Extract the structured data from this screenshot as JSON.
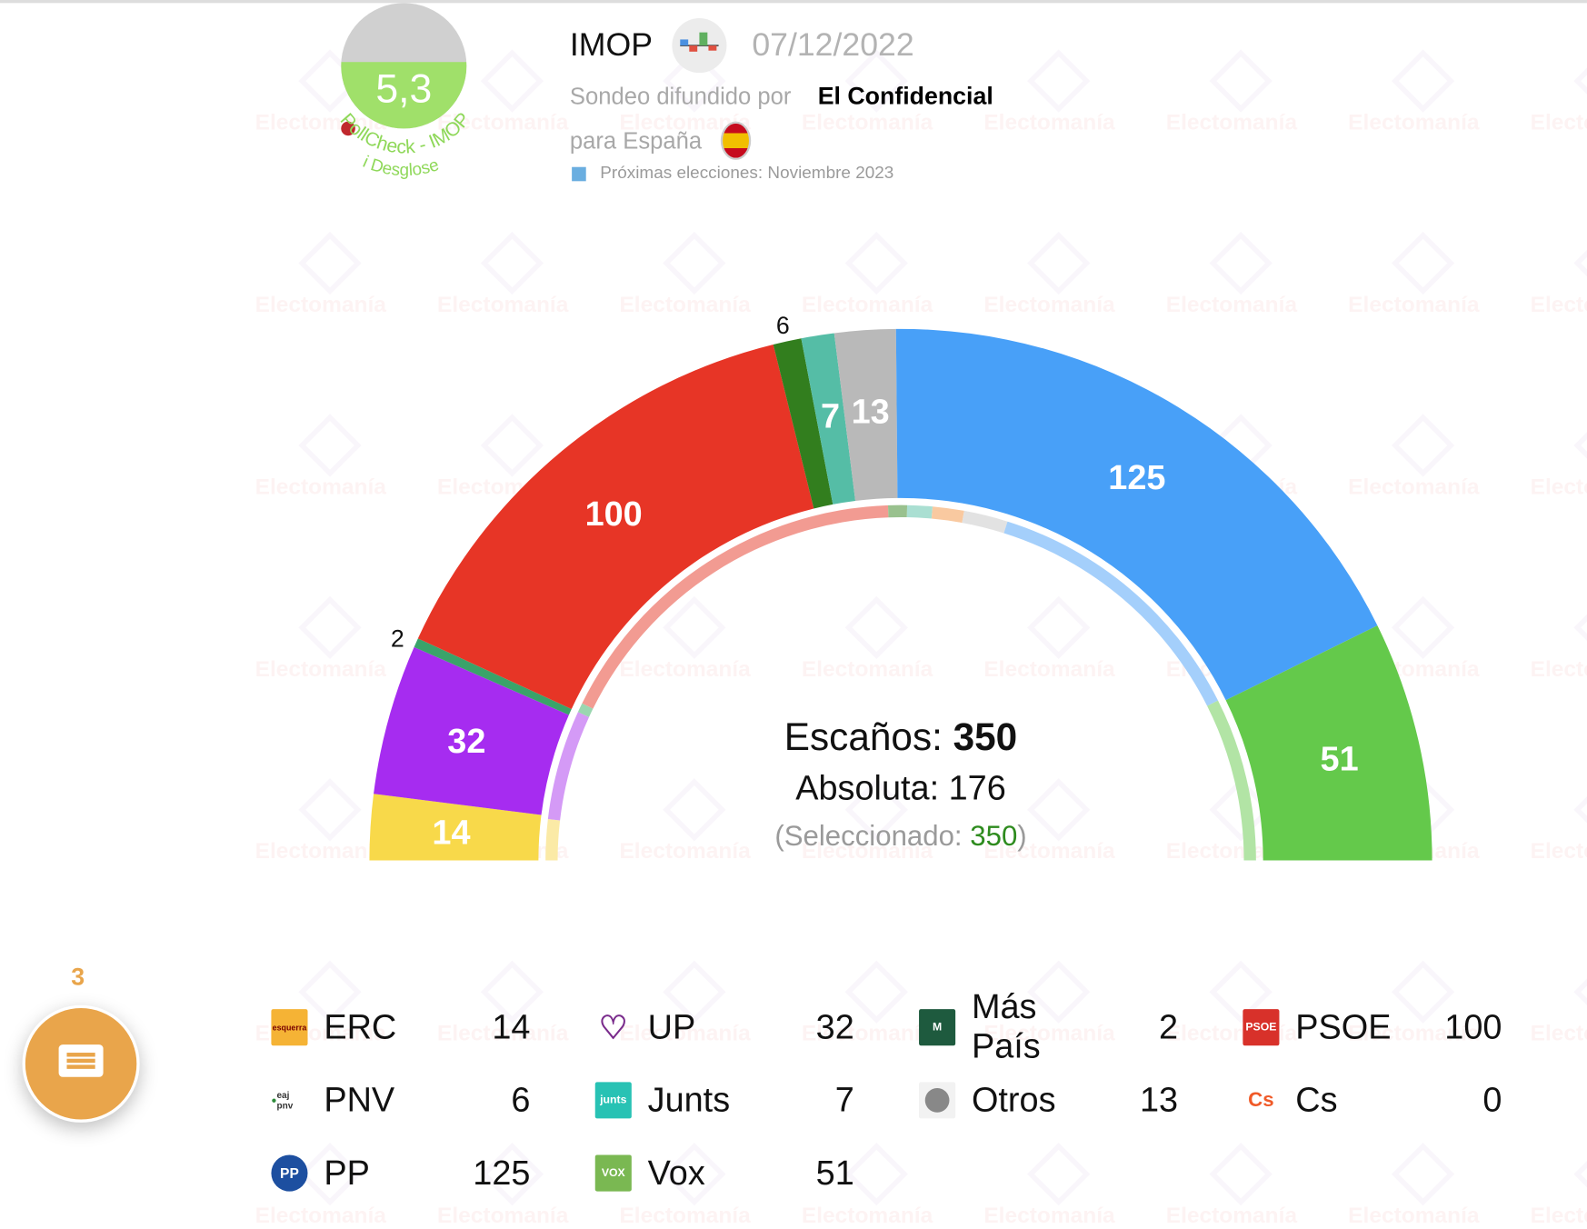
{
  "header": {
    "pollster": "IMOP",
    "date": "07/12/2022",
    "published_by_label": "Sondeo difundido por",
    "media": "El Confidencial",
    "scope": "para España",
    "next_elections": "Próximas elecciones: Noviembre 2023",
    "rating": {
      "value": "5,3",
      "fill_fraction": 0.53,
      "label": "PollCheck - IMOP",
      "link": "i Desglose",
      "color": "#a0e06a"
    }
  },
  "watermark": "Electomanía",
  "center": {
    "seats_label": "Escaños:",
    "seats_total": "350",
    "majority_label": "Absoluta: 176",
    "selected_label": "(Seleccionado:",
    "selected_value": "350",
    "selected_close": ")"
  },
  "chart_data": {
    "type": "pie",
    "shape": "semicircle-parliament",
    "total": 350,
    "series": [
      {
        "name": "ERC",
        "value": 14,
        "color": "#f8d94a",
        "previous": 13,
        "previous_color": "#fbeaa6"
      },
      {
        "name": "UP",
        "value": 32,
        "color": "#a62cf0",
        "previous": 35,
        "previous_color": "#d49af6"
      },
      {
        "name": "Más País",
        "value": 2,
        "color": "#3aa36a",
        "previous": 3,
        "previous_color": "#9ad6b0"
      },
      {
        "name": "PSOE",
        "value": 100,
        "color": "#e73526",
        "previous": 120,
        "previous_color": "#f29b92"
      },
      {
        "name": "PNV",
        "value": 6,
        "color": "#327e1e",
        "previous": 6,
        "previous_color": "#99c18e"
      },
      {
        "name": "Junts",
        "value": 7,
        "color": "#55bda6",
        "previous": 8,
        "previous_color": "#aadfd2"
      },
      {
        "name": "Cs",
        "value": 0,
        "color": "#f39440",
        "previous": 10,
        "previous_color": "#f9c9a0"
      },
      {
        "name": "Otros",
        "value": 13,
        "color": "#b9b9b9",
        "previous": 14,
        "previous_color": "#e2e2e2"
      },
      {
        "name": "PP",
        "value": 125,
        "color": "#48a0f8",
        "previous": 89,
        "previous_color": "#a4cffb"
      },
      {
        "name": "Vox",
        "value": 51,
        "color": "#64c94b",
        "previous": 52,
        "previous_color": "#b2e4a5"
      }
    ]
  },
  "legend": [
    {
      "name": "ERC",
      "seats": "14",
      "icon": "esquerra-logo",
      "icon_text": "esquerra",
      "color": "#f5b335"
    },
    {
      "name": "UP",
      "seats": "32",
      "icon": "heart-logo",
      "icon_text": "",
      "color": "#7a2c8c"
    },
    {
      "name": "Más País",
      "seats": "2",
      "icon": "mas-pais-logo",
      "icon_text": "M",
      "color": "#1e5a3e"
    },
    {
      "name": "PSOE",
      "seats": "100",
      "icon": "psoe-logo",
      "icon_text": "PSOE",
      "color": "#d8312a"
    },
    {
      "name": "PNV",
      "seats": "6",
      "icon": "pnv-logo",
      "icon_text": "eaj pnv",
      "color": "#2e8b3a"
    },
    {
      "name": "Junts",
      "seats": "7",
      "icon": "junts-logo",
      "icon_text": "junts",
      "color": "#28c2b4"
    },
    {
      "name": "Otros",
      "seats": "13",
      "icon": "gray-dot",
      "icon_text": "",
      "color": "#888888"
    },
    {
      "name": "Cs",
      "seats": "0",
      "icon": "cs-logo",
      "icon_text": "Cs",
      "color": "#f05a28"
    },
    {
      "name": "PP",
      "seats": "125",
      "icon": "pp-logo",
      "icon_text": "PP",
      "color": "#1d4fa0"
    },
    {
      "name": "Vox",
      "seats": "51",
      "icon": "vox-logo",
      "icon_text": "VOX",
      "color": "#7ab852"
    }
  ],
  "chat": {
    "badge": "3",
    "color": "#e9a54b"
  }
}
